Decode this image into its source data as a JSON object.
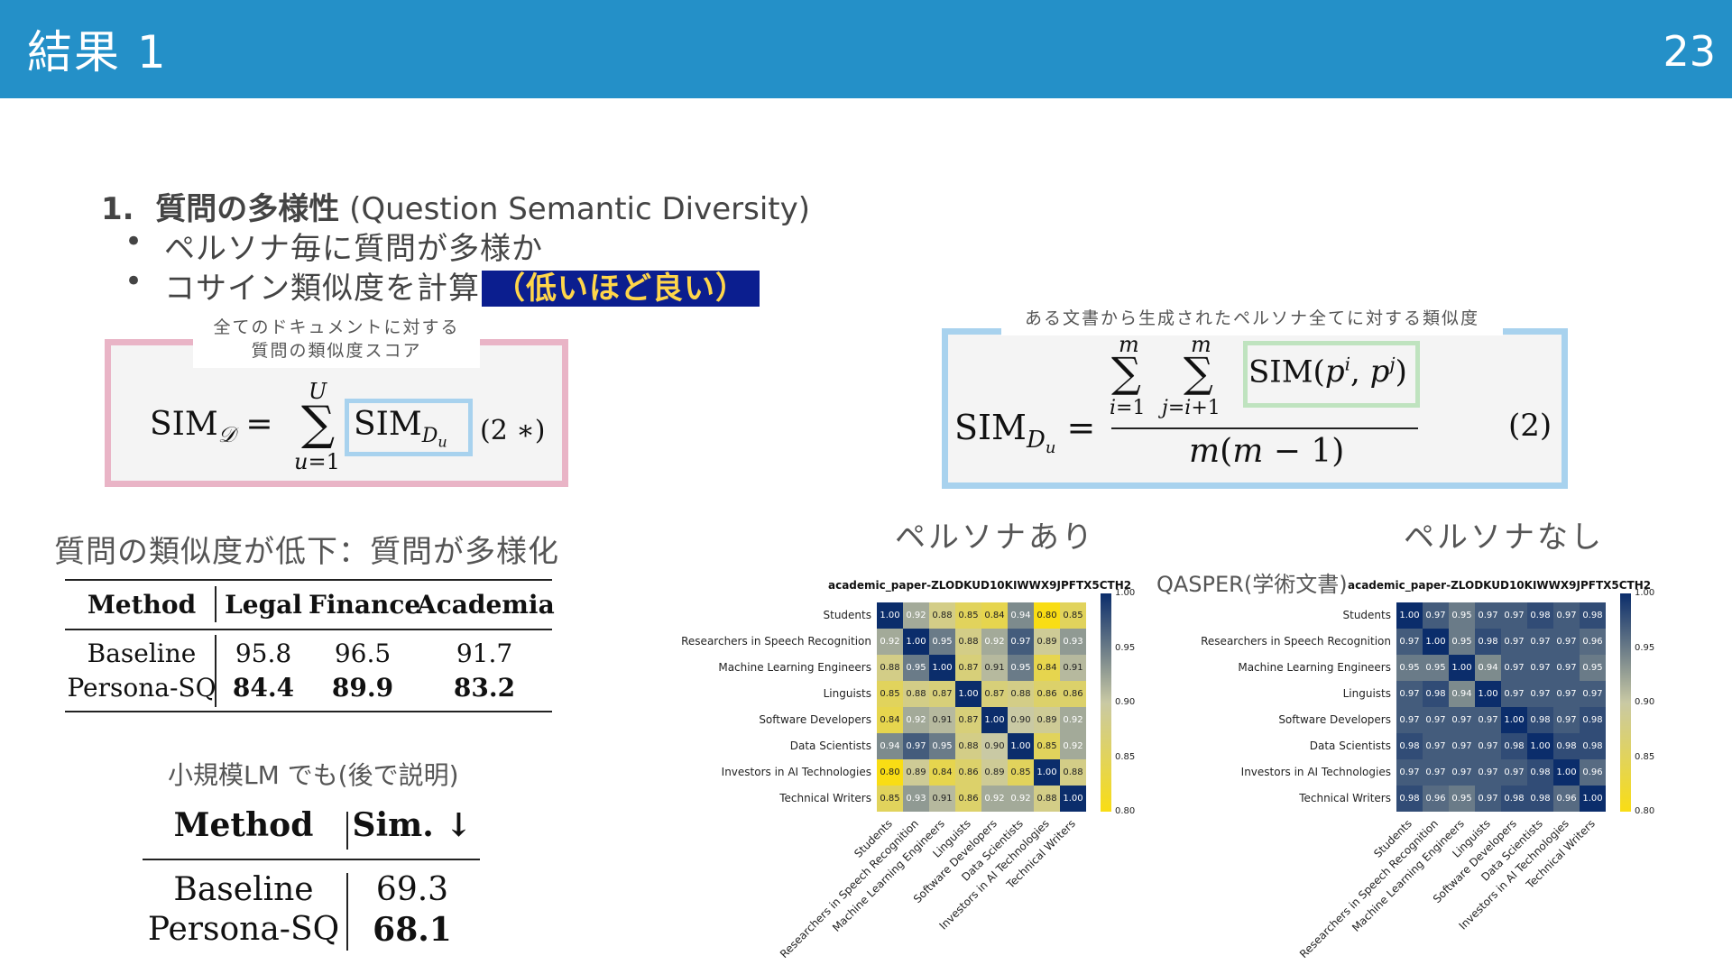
{
  "header": {
    "title": "結果 1",
    "page_number": "23"
  },
  "bullets": {
    "num": "1.",
    "heading_bold": "質問の多様性",
    "heading_normal": " (Question Semantic Diversity)",
    "item1": "ペルソナ毎に質問が多様か",
    "item2": "コサイン類似度を計算",
    "item2_highlight": "（低いほど良い）"
  },
  "formula_left": {
    "caption_line1": "全てのドキュメントに対する",
    "caption_line2": "質問の類似度スコア",
    "label": "(2 ∗)"
  },
  "formula_right": {
    "caption": "ある文書から生成されたペルソナ全てに対する類似度",
    "label": "(2)"
  },
  "section1": {
    "title": "質問の類似度が低下：質問が多様化"
  },
  "table1": {
    "headers": [
      "Method",
      "Legal",
      "Finance",
      "Academia"
    ],
    "rows": [
      [
        "Baseline",
        "95.8",
        "96.5",
        "91.7"
      ],
      [
        "Persona-SQ",
        "84.4",
        "89.9",
        "83.2"
      ]
    ]
  },
  "section2": {
    "title": "小規模LM でも(後で説明)"
  },
  "table2": {
    "headers": [
      "Method",
      "Sim. ↓"
    ],
    "rows": [
      [
        "Baseline",
        "69.3"
      ],
      [
        "Persona-SQ",
        "68.1"
      ]
    ]
  },
  "heatmaps": {
    "label_with": "ペルソナあり",
    "label_without": "ペルソナなし",
    "qasper": "QASPER(学術文書)",
    "title": "academic_paper-ZLODKUD10KIWWX9JPFTX5CTH2",
    "labels": [
      "Students",
      "Researchers in Speech Recognition",
      "Machine Learning Engineers",
      "Linguists",
      "Software Developers",
      "Data Scientists",
      "Investors in AI Technologies",
      "Technical Writers"
    ],
    "cbar_ticks": [
      "1.00",
      "0.95",
      "0.90",
      "0.85",
      "0.80"
    ],
    "colors": {
      "low": "#f9dd14",
      "mid": "#c9c9a4",
      "high": "#0b2d6b"
    },
    "with_persona": [
      [
        1.0,
        0.92,
        0.88,
        0.85,
        0.84,
        0.94,
        0.8,
        0.85
      ],
      [
        0.92,
        1.0,
        0.95,
        0.88,
        0.92,
        0.97,
        0.89,
        0.93
      ],
      [
        0.88,
        0.95,
        1.0,
        0.87,
        0.91,
        0.95,
        0.84,
        0.91
      ],
      [
        0.85,
        0.88,
        0.87,
        1.0,
        0.87,
        0.88,
        0.86,
        0.86
      ],
      [
        0.84,
        0.92,
        0.91,
        0.87,
        1.0,
        0.9,
        0.89,
        0.92
      ],
      [
        0.94,
        0.97,
        0.95,
        0.88,
        0.9,
        1.0,
        0.85,
        0.92
      ],
      [
        0.8,
        0.89,
        0.84,
        0.86,
        0.89,
        0.85,
        1.0,
        0.88
      ],
      [
        0.85,
        0.93,
        0.91,
        0.86,
        0.92,
        0.92,
        0.88,
        1.0
      ]
    ],
    "without_persona": [
      [
        1.0,
        0.97,
        0.95,
        0.97,
        0.97,
        0.98,
        0.97,
        0.98
      ],
      [
        0.97,
        1.0,
        0.95,
        0.98,
        0.97,
        0.97,
        0.97,
        0.96
      ],
      [
        0.95,
        0.95,
        1.0,
        0.94,
        0.97,
        0.97,
        0.97,
        0.95
      ],
      [
        0.97,
        0.98,
        0.94,
        1.0,
        0.97,
        0.97,
        0.97,
        0.97
      ],
      [
        0.97,
        0.97,
        0.97,
        0.97,
        1.0,
        0.98,
        0.97,
        0.98
      ],
      [
        0.98,
        0.97,
        0.97,
        0.97,
        0.98,
        1.0,
        0.98,
        0.98
      ],
      [
        0.97,
        0.97,
        0.97,
        0.97,
        0.97,
        0.98,
        1.0,
        0.96
      ],
      [
        0.98,
        0.96,
        0.95,
        0.97,
        0.98,
        0.98,
        0.96,
        1.0
      ]
    ]
  }
}
